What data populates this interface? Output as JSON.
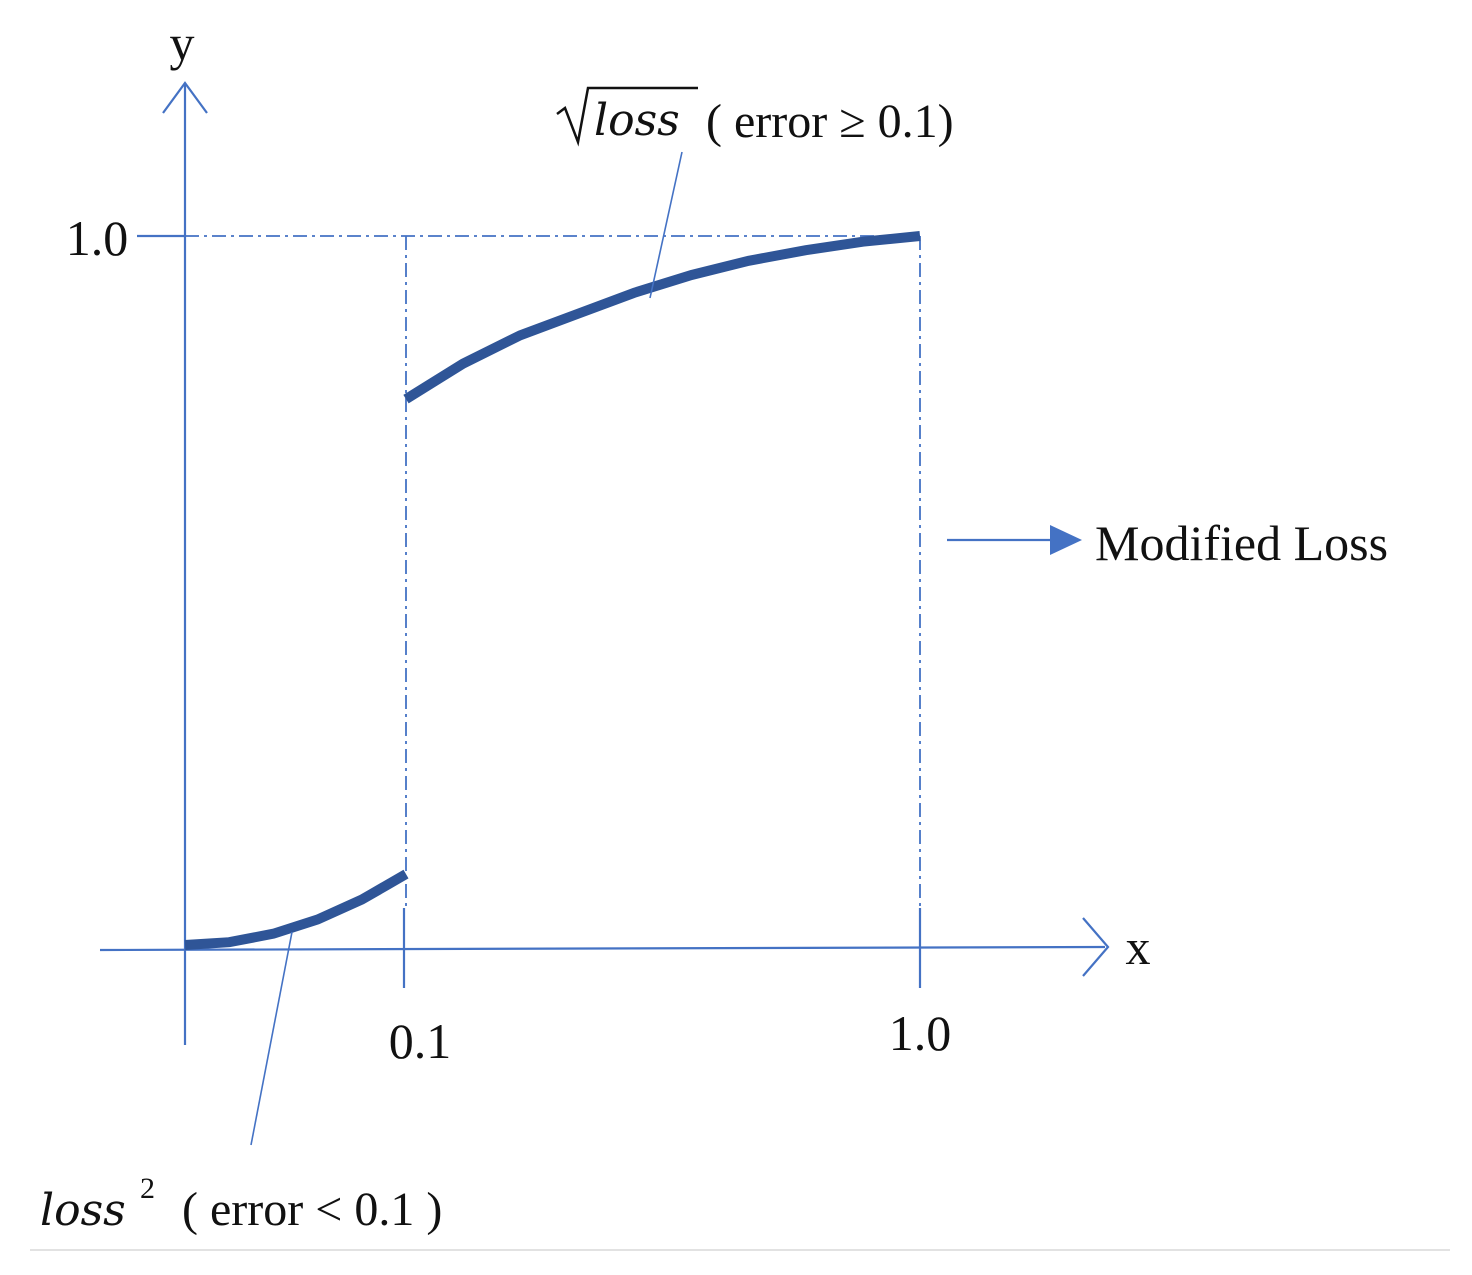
{
  "chart_data": {
    "type": "line",
    "xlabel": "x",
    "ylabel": "y",
    "xlim": [
      0,
      1.0
    ],
    "ylim": [
      0,
      1.0
    ],
    "x_tick_labels": [
      "0.1",
      "1.0"
    ],
    "y_tick_labels": [
      "1.0"
    ],
    "reference_lines": {
      "x": [
        0.1,
        1.0
      ],
      "y": [
        1.0
      ],
      "style": "dash-dot"
    },
    "grid": false,
    "series": [
      {
        "x": [
          0.0,
          0.02,
          0.04,
          0.06,
          0.08,
          0.1
        ],
        "y": [
          0.0,
          0.004,
          0.016,
          0.036,
          0.064,
          0.1
        ]
      },
      {
        "x": [
          0.1,
          0.2,
          0.3,
          0.4,
          0.5,
          0.6,
          0.7,
          0.8,
          0.9,
          1.0
        ],
        "y": [
          0.77,
          0.82,
          0.86,
          0.89,
          0.92,
          0.945,
          0.965,
          0.98,
          0.992,
          1.0
        ]
      }
    ],
    "annotations": {
      "upper": {
        "math": "√loss",
        "text": "( error ≥ 0.1)"
      },
      "lower": {
        "math": "loss",
        "superscript": "2",
        "text": "( error < 0.1 )"
      }
    },
    "legend": {
      "position": "right",
      "label": "Modified Loss"
    }
  },
  "colors": {
    "axis": "#4472C4",
    "curve": "#2F5597"
  }
}
